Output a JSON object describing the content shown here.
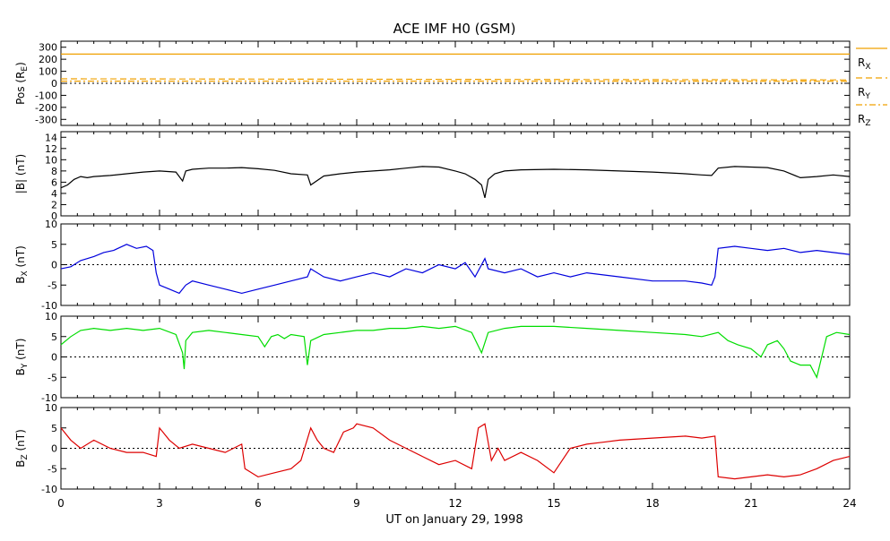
{
  "title": "ACE IMF H0 (GSM)",
  "xlabel": "UT on January 29, 1998",
  "colors": {
    "black": "#000000",
    "bx": "#0000dd",
    "by": "#00dd00",
    "bz": "#dd0000",
    "pos": "#f0a000"
  },
  "chart_data": {
    "type": "line",
    "x_range": [
      0,
      24
    ],
    "x_ticks": [
      "0",
      "3",
      "6",
      "9",
      "12",
      "15",
      "18",
      "21",
      "24"
    ],
    "panels": [
      {
        "id": "pos",
        "ylabel_main": "Pos (R",
        "ylabel_sub": "E",
        "ylabel_tail": ")",
        "ylim": [
          -350,
          350
        ],
        "ytick_values": [
          300,
          200,
          100,
          0,
          -100,
          -200,
          -300
        ],
        "ytick_labels": [
          "300",
          "200",
          "100",
          "0",
          "-100",
          "-200",
          "-300"
        ],
        "zero_line": true,
        "legend": [
          {
            "main": "R",
            "sub": "X",
            "style": "solid"
          },
          {
            "main": "R",
            "sub": "Y",
            "style": "dashed"
          },
          {
            "main": "R",
            "sub": "Z",
            "style": "dashdot"
          }
        ],
        "series": [
          {
            "name": "RX",
            "color": "#f0a000",
            "style": "solid",
            "x": [
              0,
              24
            ],
            "y": [
              243,
              243
            ]
          },
          {
            "name": "RY",
            "color": "#f0a000",
            "style": "dashed",
            "x": [
              0,
              24
            ],
            "y": [
              37,
              28
            ]
          },
          {
            "name": "RZ",
            "color": "#f0a000",
            "style": "dashdot",
            "x": [
              0,
              24
            ],
            "y": [
              18,
              18
            ]
          }
        ]
      },
      {
        "id": "btot",
        "ylabel_main": "|B| (nT)",
        "ylim": [
          0,
          15
        ],
        "ytick_values": [
          0,
          2,
          4,
          6,
          8,
          10,
          12,
          14
        ],
        "ytick_labels": [
          "0",
          "2",
          "4",
          "6",
          "8",
          "10",
          "12",
          "14"
        ],
        "zero_line": false,
        "series": [
          {
            "name": "|B|",
            "color": "#000000",
            "style": "solid",
            "x": [
              0,
              0.2,
              0.4,
              0.6,
              0.8,
              1.0,
              1.5,
              2.0,
              2.5,
              3.0,
              3.5,
              3.7,
              3.8,
              4.0,
              4.5,
              5.0,
              5.5,
              6.0,
              6.5,
              7.0,
              7.5,
              7.6,
              8.0,
              8.5,
              9.0,
              9.5,
              10.0,
              10.5,
              11.0,
              11.5,
              12.0,
              12.3,
              12.6,
              12.8,
              12.9,
              13.0,
              13.2,
              13.5,
              14.0,
              15.0,
              16.0,
              17.0,
              18.0,
              19.0,
              19.5,
              19.8,
              20.0,
              20.5,
              21.0,
              21.5,
              22.0,
              22.5,
              23.0,
              23.5,
              24.0
            ],
            "y": [
              5.0,
              5.5,
              6.5,
              7.0,
              6.8,
              7.0,
              7.2,
              7.5,
              7.8,
              8.0,
              7.8,
              6.2,
              8.0,
              8.3,
              8.5,
              8.5,
              8.6,
              8.4,
              8.1,
              7.5,
              7.3,
              5.5,
              7.1,
              7.5,
              7.8,
              8.0,
              8.2,
              8.5,
              8.8,
              8.7,
              8.0,
              7.5,
              6.5,
              5.5,
              3.2,
              6.5,
              7.5,
              8.0,
              8.2,
              8.3,
              8.2,
              8.0,
              7.8,
              7.5,
              7.3,
              7.2,
              8.5,
              8.8,
              8.7,
              8.6,
              8.0,
              6.8,
              7.0,
              7.3,
              7.0
            ]
          }
        ]
      },
      {
        "id": "bx",
        "ylabel_main": "B",
        "ylabel_sub": "X",
        "ylabel_tail": " (nT)",
        "ylim": [
          -10,
          10
        ],
        "ytick_values": [
          10,
          5,
          0,
          -5,
          -10
        ],
        "ytick_labels": [
          "10",
          "5",
          "0",
          "-5",
          "-10"
        ],
        "zero_line": true,
        "series": [
          {
            "name": "BX",
            "color": "#0000dd",
            "style": "solid",
            "x": [
              0,
              0.3,
              0.6,
              1.0,
              1.3,
              1.6,
              2.0,
              2.3,
              2.6,
              2.8,
              2.9,
              3.0,
              3.3,
              3.6,
              3.8,
              4.0,
              4.5,
              5.0,
              5.5,
              6.0,
              6.5,
              7.0,
              7.5,
              7.6,
              8.0,
              8.5,
              9.0,
              9.5,
              10.0,
              10.5,
              11.0,
              11.5,
              12.0,
              12.3,
              12.6,
              12.9,
              13.0,
              13.5,
              14.0,
              14.5,
              15.0,
              15.5,
              16.0,
              17.0,
              18.0,
              19.0,
              19.5,
              19.8,
              19.9,
              20.0,
              20.5,
              21.0,
              21.5,
              22.0,
              22.5,
              23.0,
              23.5,
              24.0
            ],
            "y": [
              -1,
              -0.5,
              1,
              2,
              3,
              3.5,
              5,
              4,
              4.5,
              3.5,
              -2,
              -5,
              -6,
              -7,
              -5,
              -4,
              -5,
              -6,
              -7,
              -6,
              -5,
              -4,
              -3,
              -1,
              -3,
              -4,
              -3,
              -2,
              -3,
              -1,
              -2,
              0,
              -1,
              0.5,
              -3,
              1.5,
              -1,
              -2,
              -1,
              -3,
              -2,
              -3,
              -2,
              -3,
              -4,
              -4,
              -4.5,
              -5,
              -3,
              4,
              4.5,
              4,
              3.5,
              4,
              3,
              3.5,
              3,
              2.5
            ]
          }
        ]
      },
      {
        "id": "by",
        "ylabel_main": "B",
        "ylabel_sub": "Y",
        "ylabel_tail": " (nT)",
        "ylim": [
          -10,
          10
        ],
        "ytick_values": [
          10,
          5,
          0,
          -5,
          -10
        ],
        "ytick_labels": [
          "10",
          "5",
          "0",
          "-5",
          "-10"
        ],
        "zero_line": true,
        "series": [
          {
            "name": "BY",
            "color": "#00dd00",
            "style": "solid",
            "x": [
              0,
              0.3,
              0.6,
              1.0,
              1.5,
              2.0,
              2.5,
              3.0,
              3.5,
              3.7,
              3.75,
              3.8,
              4.0,
              4.5,
              5.0,
              5.5,
              6.0,
              6.2,
              6.4,
              6.6,
              6.8,
              7.0,
              7.4,
              7.5,
              7.6,
              8.0,
              8.5,
              9.0,
              9.5,
              10.0,
              10.5,
              11.0,
              11.5,
              12.0,
              12.5,
              12.8,
              13.0,
              13.5,
              14.0,
              15.0,
              16.0,
              17.0,
              18.0,
              19.0,
              19.5,
              20.0,
              20.3,
              20.6,
              21.0,
              21.3,
              21.5,
              21.8,
              22.0,
              22.2,
              22.5,
              22.8,
              23.0,
              23.3,
              23.6,
              24.0
            ],
            "y": [
              3,
              5,
              6.5,
              7,
              6.5,
              7,
              6.5,
              7,
              5.5,
              1,
              -3,
              4,
              6,
              6.5,
              6,
              5.5,
              5,
              2.5,
              5,
              5.5,
              4.5,
              5.5,
              5,
              -2,
              4,
              5.5,
              6,
              6.5,
              6.5,
              7,
              7,
              7.5,
              7,
              7.5,
              6,
              1,
              6,
              7,
              7.5,
              7.5,
              7,
              6.5,
              6,
              5.5,
              5,
              6,
              4,
              3,
              2,
              0,
              3,
              4,
              2,
              -1,
              -2,
              -2,
              -5,
              5,
              6,
              5.5
            ]
          }
        ]
      },
      {
        "id": "bz",
        "ylabel_main": "B",
        "ylabel_sub": "Z",
        "ylabel_tail": " (nT)",
        "ylim": [
          -10,
          10
        ],
        "ytick_values": [
          10,
          5,
          0,
          -5,
          -10
        ],
        "ytick_labels": [
          "10",
          "5",
          "0",
          "-5",
          "-10"
        ],
        "zero_line": true,
        "series": [
          {
            "name": "BZ",
            "color": "#dd0000",
            "style": "solid",
            "x": [
              0,
              0.3,
              0.6,
              1.0,
              1.5,
              2.0,
              2.5,
              2.9,
              3.0,
              3.3,
              3.6,
              4.0,
              4.5,
              5.0,
              5.5,
              5.6,
              6.0,
              6.5,
              7.0,
              7.3,
              7.6,
              7.8,
              8.0,
              8.3,
              8.6,
              8.9,
              9.0,
              9.5,
              10.0,
              10.5,
              11.0,
              11.5,
              12.0,
              12.5,
              12.7,
              12.9,
              13.1,
              13.3,
              13.5,
              14.0,
              14.5,
              15.0,
              15.5,
              16.0,
              16.5,
              17.0,
              18.0,
              19.0,
              19.5,
              19.9,
              20.0,
              20.5,
              21.0,
              21.5,
              22.0,
              22.5,
              23.0,
              23.5,
              24.0
            ],
            "y": [
              5,
              2,
              0,
              2,
              0,
              -1,
              -1,
              -2,
              5,
              2,
              0,
              1,
              0,
              -1,
              1,
              -5,
              -7,
              -6,
              -5,
              -3,
              5,
              2,
              0,
              -1,
              4,
              5,
              6,
              5,
              2,
              0,
              -2,
              -4,
              -3,
              -5,
              5,
              6,
              -3,
              0,
              -3,
              -1,
              -3,
              -6,
              0,
              1,
              1.5,
              2,
              2.5,
              3,
              2.5,
              3,
              -7,
              -7.5,
              -7,
              -6.5,
              -7,
              -6.5,
              -5,
              -3,
              -2
            ]
          }
        ]
      }
    ]
  }
}
